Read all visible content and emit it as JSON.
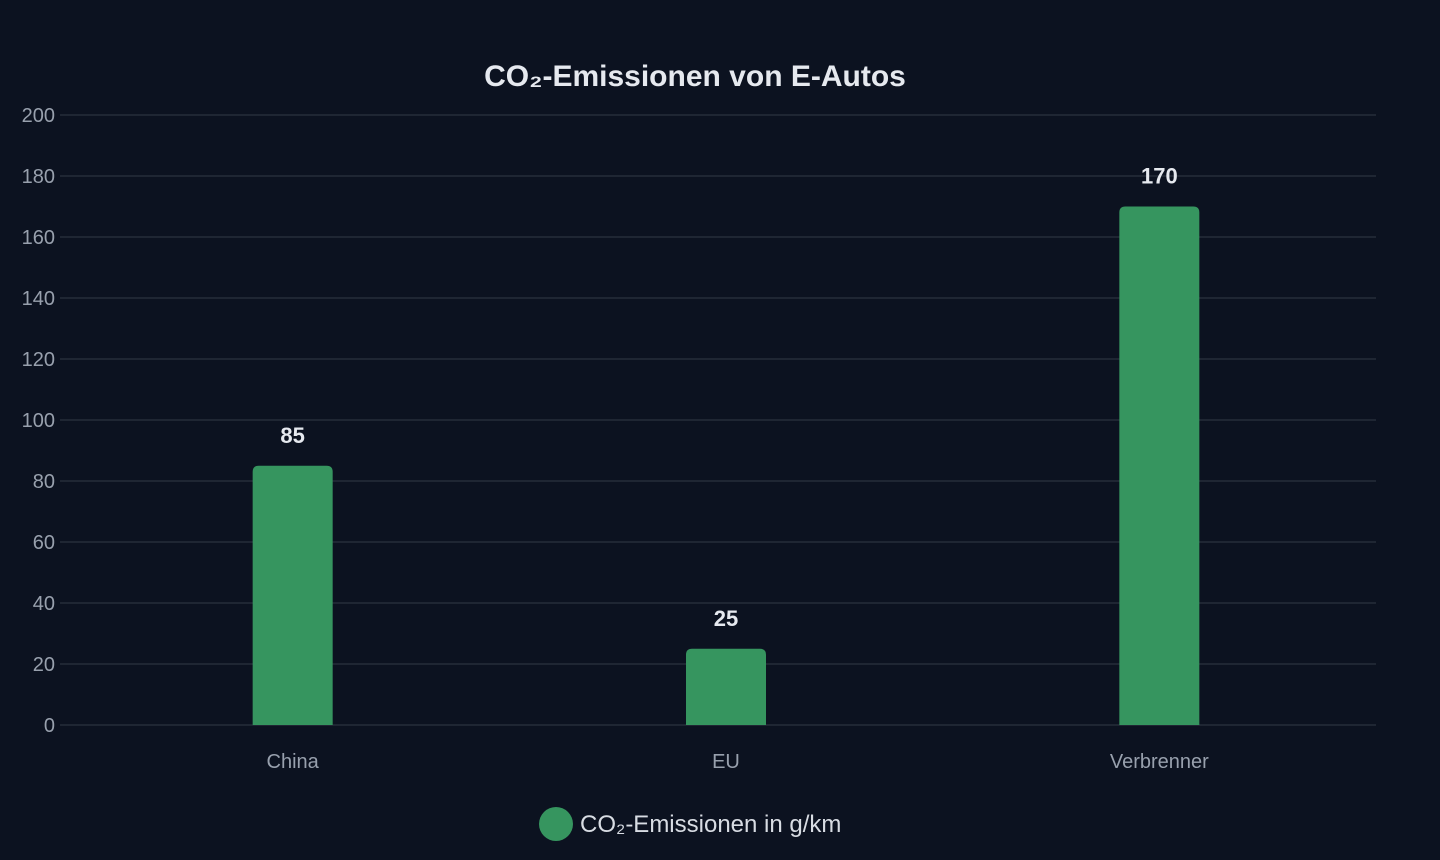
{
  "chart_data": {
    "type": "bar",
    "title": "CO₂-Emissionen von E-Autos",
    "categories": [
      "China",
      "EU",
      "Verbrenner"
    ],
    "series": [
      {
        "name": "CO₂-Emissionen in g/km",
        "values": [
          85,
          25,
          170
        ],
        "color": "#36955f"
      }
    ],
    "xlabel": "",
    "ylabel": "",
    "ylim": [
      0,
      200
    ],
    "yticks": [
      0,
      20,
      40,
      60,
      80,
      100,
      120,
      140,
      160,
      180,
      200
    ],
    "grid": true,
    "legend_position": "bottom-center",
    "data_labels": true
  },
  "colors": {
    "background": "#0c1220",
    "grid": "#1f2633",
    "text": "#e6e9ef",
    "muted": "#98a0ad"
  }
}
